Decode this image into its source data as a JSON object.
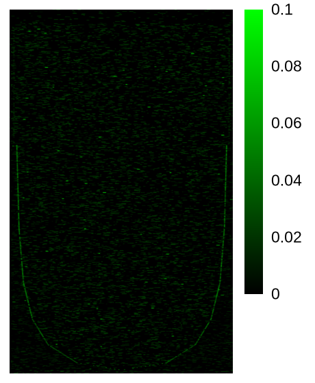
{
  "chart_data": {
    "type": "heatmap",
    "title": "",
    "xlabel": "",
    "ylabel": "",
    "colormap": {
      "low": "#000000",
      "high": "#00ff00"
    },
    "colorbar": {
      "range": [
        0,
        0.1
      ],
      "ticks": [
        {
          "value": 0.1,
          "label": "0.1"
        },
        {
          "value": 0.08,
          "label": "0.08"
        },
        {
          "value": 0.06,
          "label": "0.06"
        },
        {
          "value": 0.04,
          "label": "0.04"
        },
        {
          "value": 0.02,
          "label": "0.02"
        },
        {
          "value": 0,
          "label": "0"
        }
      ]
    },
    "noise": {
      "typical_value": 0.02,
      "sparse_bright_value": 0.08
    },
    "features": [
      {
        "name": "U-shaped trace",
        "value": 0.05,
        "profile": [
          {
            "depth": 0.37,
            "half_width": 0.47
          },
          {
            "depth": 0.6,
            "half_width": 0.46
          },
          {
            "depth": 0.75,
            "half_width": 0.44
          },
          {
            "depth": 0.85,
            "half_width": 0.4
          },
          {
            "depth": 0.92,
            "half_width": 0.33
          },
          {
            "depth": 0.97,
            "half_width": 0.2
          },
          {
            "depth": 0.99,
            "half_width": 0
          }
        ]
      }
    ]
  }
}
